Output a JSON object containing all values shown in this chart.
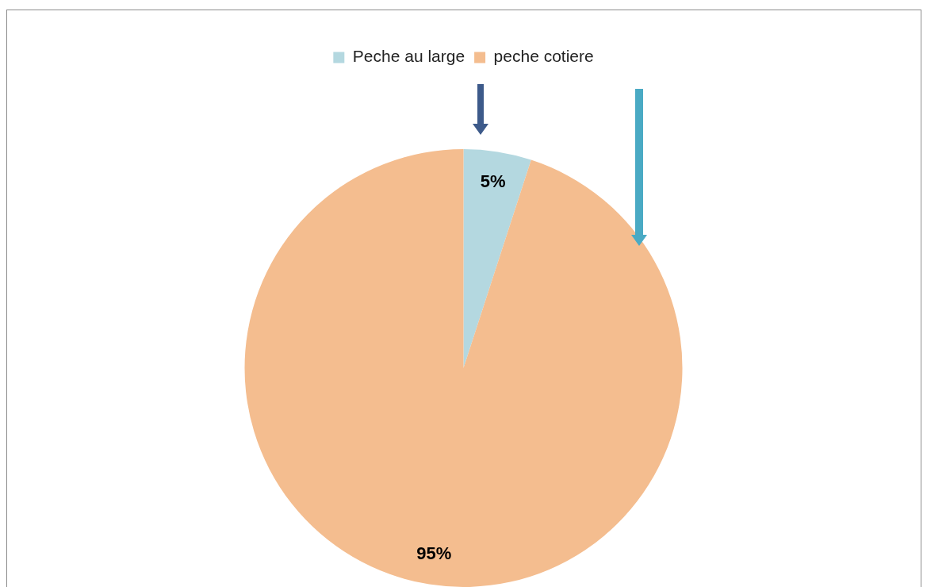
{
  "chart_data": {
    "type": "pie",
    "categories": [
      "Peche au large",
      "peche cotiere"
    ],
    "values": [
      5,
      95
    ],
    "colors": [
      "#b4d8e0",
      "#f4bd8f"
    ],
    "value_labels": [
      "5%",
      "95%"
    ],
    "legend": "top"
  }
}
